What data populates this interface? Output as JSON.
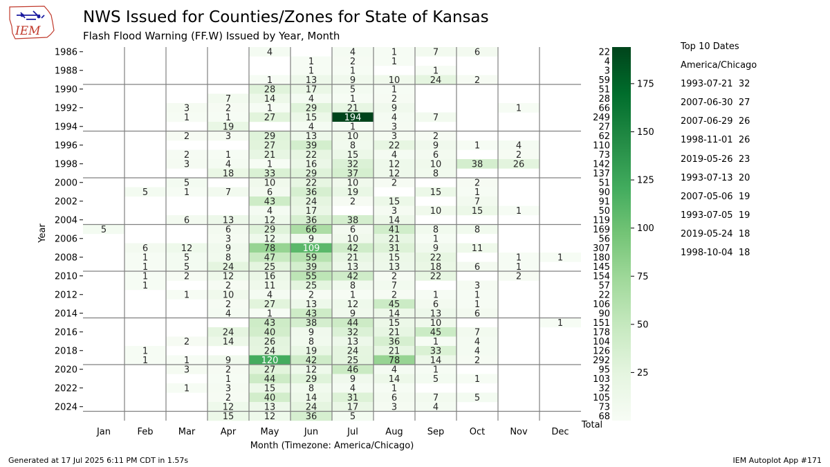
{
  "logo": {
    "text": "IEM"
  },
  "header": {
    "title": "NWS Issued for Counties/Zones for State of Kansas",
    "subtitle": "Flash Flood Warning (FF.W) Issued by Year, Month"
  },
  "top10": {
    "heading": "Top 10 Dates",
    "timezone": "America/Chicago",
    "items": [
      {
        "date": "1993-07-21",
        "count": "32"
      },
      {
        "date": "2007-06-30",
        "count": "27"
      },
      {
        "date": "2007-06-29",
        "count": "26"
      },
      {
        "date": "1998-11-01",
        "count": "26"
      },
      {
        "date": "2019-05-26",
        "count": "23"
      },
      {
        "date": "1993-07-13",
        "count": "20"
      },
      {
        "date": "2007-05-06",
        "count": "19"
      },
      {
        "date": "1993-07-05",
        "count": "19"
      },
      {
        "date": "2019-05-24",
        "count": "18"
      },
      {
        "date": "1998-10-04",
        "count": "18"
      }
    ]
  },
  "footer": {
    "generated": "Generated at 17 Jul 2025 6:11 PM CDT in 1.57s",
    "app": "IEM Autoplot App #171"
  },
  "chart_data": {
    "type": "heatmap",
    "xlabel": "Month (Timezone: America/Chicago)",
    "ylabel": "Year",
    "total_label": "Total",
    "months": [
      "Jan",
      "Feb",
      "Mar",
      "Apr",
      "May",
      "Jun",
      "Jul",
      "Aug",
      "Sep",
      "Oct",
      "Nov",
      "Dec"
    ],
    "years": [
      1986,
      1987,
      1988,
      1989,
      1990,
      1991,
      1992,
      1993,
      1994,
      1995,
      1996,
      1997,
      1998,
      1999,
      2000,
      2001,
      2002,
      2003,
      2004,
      2005,
      2006,
      2007,
      2008,
      2009,
      2010,
      2011,
      2012,
      2013,
      2014,
      2015,
      2016,
      2017,
      2018,
      2019,
      2020,
      2021,
      2022,
      2023,
      2024,
      2025
    ],
    "year_ticks": [
      1986,
      1988,
      1990,
      1992,
      1994,
      1996,
      1998,
      2000,
      2002,
      2004,
      2006,
      2008,
      2010,
      2012,
      2014,
      2016,
      2018,
      2020,
      2022,
      2024
    ],
    "values": [
      [
        null,
        null,
        null,
        null,
        4,
        null,
        4,
        1,
        7,
        6,
        null,
        null
      ],
      [
        null,
        null,
        null,
        null,
        null,
        1,
        2,
        1,
        null,
        null,
        null,
        null
      ],
      [
        null,
        null,
        null,
        null,
        null,
        1,
        1,
        null,
        1,
        null,
        null,
        null
      ],
      [
        null,
        null,
        null,
        null,
        1,
        13,
        9,
        10,
        24,
        2,
        null,
        null
      ],
      [
        null,
        null,
        null,
        null,
        28,
        17,
        5,
        1,
        null,
        null,
        null,
        null
      ],
      [
        null,
        null,
        null,
        7,
        14,
        4,
        1,
        2,
        null,
        null,
        null,
        null
      ],
      [
        null,
        null,
        3,
        2,
        1,
        29,
        21,
        9,
        null,
        null,
        1,
        null
      ],
      [
        null,
        null,
        1,
        1,
        27,
        15,
        194,
        4,
        7,
        null,
        null,
        null
      ],
      [
        null,
        null,
        null,
        19,
        null,
        4,
        1,
        3,
        null,
        null,
        null,
        null
      ],
      [
        null,
        null,
        2,
        3,
        29,
        13,
        10,
        3,
        2,
        null,
        null,
        null
      ],
      [
        null,
        null,
        null,
        null,
        27,
        39,
        8,
        22,
        9,
        1,
        4,
        null
      ],
      [
        null,
        null,
        2,
        1,
        21,
        22,
        15,
        4,
        6,
        null,
        2,
        null
      ],
      [
        null,
        null,
        3,
        4,
        1,
        16,
        32,
        12,
        10,
        38,
        26,
        null
      ],
      [
        null,
        null,
        null,
        18,
        33,
        29,
        37,
        12,
        8,
        null,
        null,
        null
      ],
      [
        null,
        null,
        5,
        null,
        10,
        22,
        10,
        2,
        null,
        2,
        null,
        null
      ],
      [
        null,
        5,
        1,
        7,
        6,
        36,
        19,
        null,
        15,
        1,
        null,
        null
      ],
      [
        null,
        null,
        null,
        null,
        43,
        24,
        2,
        15,
        null,
        7,
        null,
        null
      ],
      [
        null,
        null,
        null,
        null,
        4,
        17,
        null,
        3,
        10,
        15,
        1,
        null
      ],
      [
        null,
        null,
        6,
        13,
        12,
        36,
        38,
        14,
        null,
        null,
        null,
        null
      ],
      [
        5,
        null,
        null,
        6,
        29,
        66,
        6,
        41,
        8,
        8,
        null,
        null
      ],
      [
        null,
        null,
        null,
        3,
        12,
        9,
        10,
        21,
        1,
        null,
        null,
        null
      ],
      [
        null,
        6,
        12,
        9,
        78,
        109,
        42,
        31,
        9,
        11,
        null,
        null
      ],
      [
        null,
        1,
        5,
        8,
        47,
        59,
        21,
        15,
        22,
        null,
        1,
        1
      ],
      [
        null,
        1,
        5,
        24,
        25,
        39,
        13,
        13,
        18,
        6,
        1,
        null
      ],
      [
        null,
        1,
        2,
        12,
        16,
        55,
        42,
        2,
        22,
        null,
        2,
        null
      ],
      [
        null,
        1,
        null,
        2,
        11,
        25,
        8,
        7,
        null,
        3,
        null,
        null
      ],
      [
        null,
        null,
        1,
        10,
        4,
        2,
        1,
        2,
        1,
        1,
        null,
        null
      ],
      [
        null,
        null,
        null,
        2,
        27,
        13,
        12,
        45,
        6,
        1,
        null,
        null
      ],
      [
        null,
        null,
        null,
        4,
        1,
        43,
        9,
        14,
        13,
        6,
        null,
        null
      ],
      [
        null,
        null,
        null,
        null,
        43,
        38,
        44,
        15,
        10,
        null,
        null,
        1
      ],
      [
        null,
        null,
        null,
        24,
        40,
        9,
        32,
        21,
        45,
        7,
        null,
        null
      ],
      [
        null,
        null,
        2,
        14,
        26,
        8,
        13,
        36,
        1,
        4,
        null,
        null
      ],
      [
        null,
        1,
        null,
        null,
        24,
        19,
        24,
        21,
        33,
        4,
        null,
        null
      ],
      [
        null,
        1,
        1,
        9,
        120,
        42,
        25,
        78,
        14,
        2,
        null,
        null
      ],
      [
        null,
        null,
        3,
        2,
        27,
        12,
        46,
        4,
        1,
        null,
        null,
        null
      ],
      [
        null,
        null,
        null,
        1,
        44,
        29,
        9,
        14,
        5,
        1,
        null,
        null
      ],
      [
        null,
        null,
        1,
        3,
        15,
        8,
        4,
        1,
        null,
        null,
        null,
        null
      ],
      [
        null,
        null,
        null,
        2,
        40,
        14,
        31,
        6,
        7,
        5,
        null,
        null
      ],
      [
        null,
        null,
        null,
        12,
        13,
        24,
        17,
        3,
        4,
        null,
        null,
        null
      ],
      [
        null,
        null,
        null,
        15,
        12,
        36,
        5,
        null,
        null,
        null,
        null,
        null
      ]
    ],
    "totals": [
      22,
      4,
      3,
      59,
      51,
      28,
      66,
      249,
      27,
      62,
      110,
      73,
      142,
      137,
      51,
      90,
      91,
      50,
      119,
      169,
      56,
      307,
      180,
      145,
      154,
      57,
      22,
      106,
      90,
      151,
      178,
      104,
      126,
      292,
      95,
      103,
      32,
      105,
      73,
      68
    ],
    "colorbar": {
      "min": 0,
      "max": 194,
      "ticks": [
        25,
        50,
        75,
        100,
        125,
        150,
        175
      ]
    },
    "colors": {
      "low": "#f7fcf5",
      "high": "#00441b",
      "grid": "#808080"
    }
  }
}
